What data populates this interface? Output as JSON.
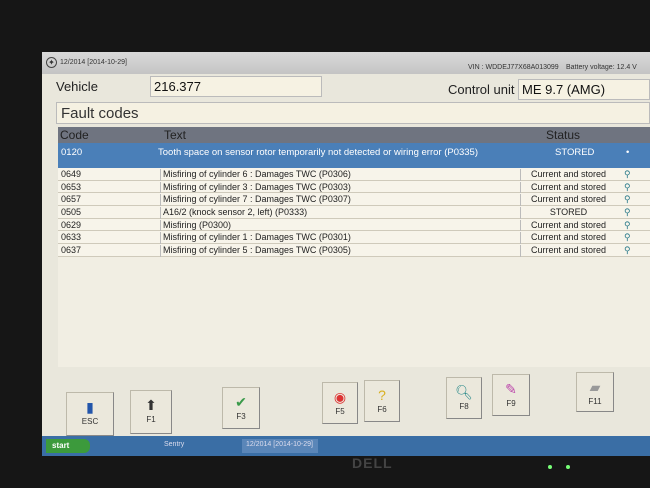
{
  "titlebar": {
    "date": "12/2014 [2014-10-29]",
    "vin": "VIN : WDDEJ77X68A013099",
    "battery": "Battery voltage: 12.4 V"
  },
  "vehicle": {
    "label": "Vehicle",
    "value": "216.377"
  },
  "control_unit": {
    "label": "Control unit",
    "value": "ME 9.7 (AMG)"
  },
  "section_title": "Fault codes",
  "table": {
    "headers": [
      "Code",
      "Text",
      "Status"
    ],
    "selected": {
      "code": "0120",
      "text": "Tooth space on sensor rotor temporarily not detected or wiring error (P0335)",
      "status": "STORED"
    },
    "rows": [
      {
        "code": "0649",
        "text": "Misfiring of cylinder 6 : Damages TWC (P0306)",
        "status": "Current and stored"
      },
      {
        "code": "0653",
        "text": "Misfiring of cylinder 3 : Damages TWC (P0303)",
        "status": "Current and stored"
      },
      {
        "code": "0657",
        "text": "Misfiring of cylinder 7 : Damages TWC (P0307)",
        "status": "Current and stored"
      },
      {
        "code": "0505",
        "text": "A16/2 (knock sensor 2, left) (P0333)",
        "status": "STORED"
      },
      {
        "code": "0629",
        "text": "Misfiring (P0300)",
        "status": "Current and stored"
      },
      {
        "code": "0633",
        "text": "Misfiring of cylinder 1 : Damages TWC (P0301)",
        "status": "Current and stored"
      },
      {
        "code": "0637",
        "text": "Misfiring of cylinder 5 : Damages TWC (P0305)",
        "status": "Current and stored"
      }
    ]
  },
  "buttons": {
    "esc": "ESC",
    "f1": "F1",
    "f3": "F3",
    "f5": "F5",
    "f6": "F6",
    "f8": "F8",
    "f9": "F9",
    "f11": "F11"
  },
  "taskbar": {
    "start": "start",
    "task1": "Sentry",
    "task2": "12/2014 [2014-10-29]"
  },
  "bezel": {
    "brand": "DELL"
  },
  "colors": {
    "selected_row": "#4a7fb8",
    "header": "#6f7480",
    "background": "#e9e7dc"
  }
}
